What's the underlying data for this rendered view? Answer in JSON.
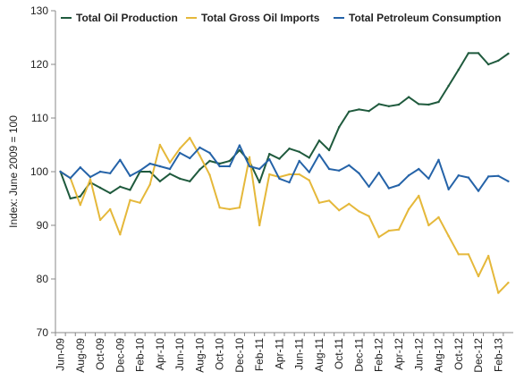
{
  "chart_data": {
    "type": "line",
    "title": "",
    "xlabel": "",
    "ylabel": "Index: June 2009 = 100",
    "ylim": [
      70,
      130
    ],
    "yticks": [
      70,
      80,
      90,
      100,
      110,
      120,
      130
    ],
    "grid": false,
    "legend_position": "top",
    "x": [
      "Jun-09",
      "Jul-09",
      "Aug-09",
      "Sep-09",
      "Oct-09",
      "Nov-09",
      "Dec-09",
      "Jan-10",
      "Feb-10",
      "Mar-10",
      "Apr-10",
      "May-10",
      "Jun-10",
      "Jul-10",
      "Aug-10",
      "Sep-10",
      "Oct-10",
      "Nov-10",
      "Dec-10",
      "Jan-11",
      "Feb-11",
      "Mar-11",
      "Apr-11",
      "May-11",
      "Jun-11",
      "Jul-11",
      "Aug-11",
      "Sep-11",
      "Oct-11",
      "Nov-11",
      "Dec-11",
      "Jan-12",
      "Feb-12",
      "Mar-12",
      "Apr-12",
      "May-12",
      "Jun-12",
      "Jul-12",
      "Aug-12",
      "Sep-12",
      "Oct-12",
      "Nov-12",
      "Dec-12",
      "Jan-13",
      "Feb-13",
      "Mar-13"
    ],
    "xtick_labels": [
      "Jun-09",
      "Aug-09",
      "Oct-09",
      "Dec-09",
      "Feb-10",
      "Apr-10",
      "Jun-10",
      "Aug-10",
      "Oct-10",
      "Dec-10",
      "Feb-11",
      "Apr-11",
      "Jun-11",
      "Aug-11",
      "Oct-11",
      "Dec-11",
      "Feb-12",
      "Apr-12",
      "Jun-12",
      "Aug-12",
      "Oct-12",
      "Dec-12",
      "Feb-13"
    ],
    "series": [
      {
        "name": "Total Oil Production",
        "color": "#1f5a3d",
        "values": [
          100,
          95.0,
          95.4,
          98.0,
          97.0,
          96.0,
          97.2,
          96.6,
          100.0,
          100.0,
          98.2,
          99.6,
          98.7,
          98.2,
          100.4,
          102.0,
          101.5,
          102.0,
          104.0,
          101.9,
          98.0,
          103.3,
          102.4,
          104.3,
          103.7,
          102.6,
          105.8,
          104.0,
          108.3,
          111.2,
          111.6,
          111.3,
          112.6,
          112.2,
          112.5,
          113.9,
          112.6,
          112.5,
          113.0,
          116.0,
          119.0,
          122.1,
          122.1,
          120.0,
          120.7,
          122.0
        ]
      },
      {
        "name": "Total Gross Oil Imports",
        "color": "#e5b83a",
        "values": [
          100,
          98.8,
          93.8,
          98.6,
          91.0,
          93.0,
          88.3,
          94.7,
          94.2,
          97.6,
          105.0,
          101.7,
          104.3,
          106.3,
          103.0,
          99.4,
          93.3,
          93.0,
          93.3,
          102.7,
          90.0,
          99.5,
          99.0,
          99.5,
          99.5,
          98.4,
          94.2,
          94.6,
          92.8,
          94.0,
          92.6,
          91.7,
          87.8,
          89.0,
          89.2,
          93.0,
          95.5,
          90.0,
          91.5,
          88.0,
          84.6,
          84.6,
          80.5,
          84.3,
          77.4,
          79.3
        ]
      },
      {
        "name": "Total Petroleum Consumption",
        "color": "#2563a8",
        "values": [
          100,
          98.8,
          100.8,
          99.0,
          100.0,
          99.7,
          102.2,
          99.2,
          100.2,
          101.5,
          101.0,
          100.5,
          103.5,
          102.5,
          104.5,
          103.5,
          101.0,
          101.0,
          104.9,
          101.0,
          100.5,
          102.3,
          98.7,
          98.0,
          102.0,
          99.9,
          103.2,
          100.5,
          100.2,
          101.2,
          99.7,
          97.2,
          99.8,
          96.9,
          97.5,
          99.3,
          100.5,
          98.7,
          102.2,
          96.7,
          99.3,
          98.9,
          96.4,
          99.1,
          99.2,
          98.2
        ]
      }
    ]
  }
}
